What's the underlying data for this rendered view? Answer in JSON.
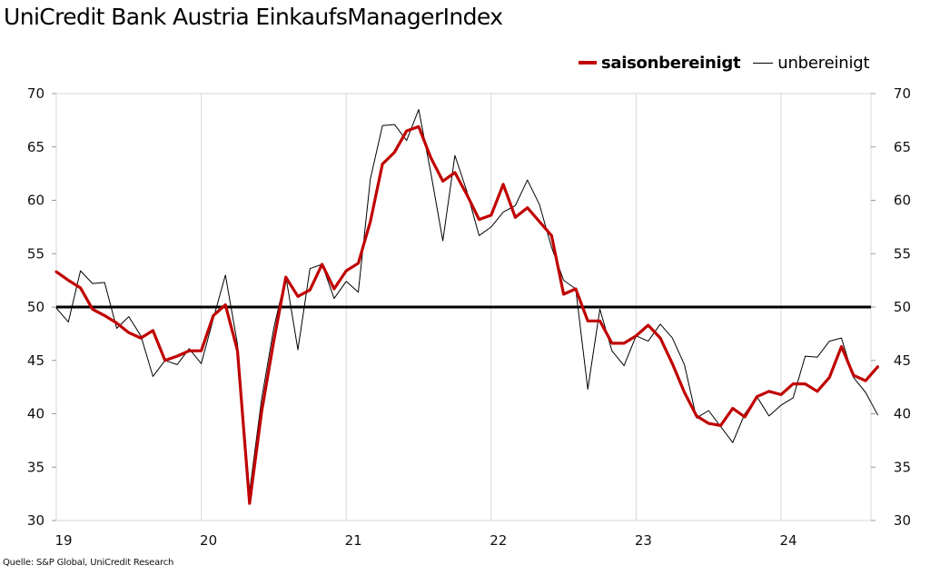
{
  "title": "UniCredit Bank Austria EinkaufsManagerIndex",
  "source": "Quelle: S&P Global, UniCredit Research",
  "legend": {
    "series1": "saisonbereinigt",
    "series2": "unbereinigt"
  },
  "colors": {
    "saisonbereinigt": "#c00000",
    "unbereinigt": "#000000",
    "threshold": "#000000",
    "grid": "#d9d9d9"
  },
  "chart_data": {
    "type": "line",
    "title": "UniCredit Bank Austria EinkaufsManagerIndex",
    "x_ticks": [
      "19",
      "20",
      "21",
      "22",
      "23",
      "24"
    ],
    "xlim": [
      2019,
      2024.667
    ],
    "ylim": [
      30,
      70
    ],
    "y_ticks": [
      30,
      35,
      40,
      45,
      50,
      55,
      60,
      65,
      70
    ],
    "y_axis_both_sides": true,
    "grid": "vertical at year starts",
    "legend_position": "top-right",
    "reference_line": 50,
    "x_start": "2019-01",
    "x_step": "monthly",
    "series": [
      {
        "name": "saisonbereinigt",
        "values": [
          53.3,
          52.5,
          51.8,
          49.8,
          49.2,
          48.5,
          47.6,
          47.1,
          47.8,
          45.0,
          45.4,
          45.9,
          45.9,
          49.2,
          50.2,
          45.9,
          31.6,
          40.2,
          46.8,
          52.8,
          51.0,
          51.6,
          54.0,
          51.7,
          53.4,
          54.1,
          58.0,
          63.4,
          64.5,
          66.5,
          66.9,
          64.0,
          61.8,
          62.6,
          60.5,
          58.2,
          58.6,
          61.5,
          58.4,
          59.3,
          58.0,
          56.7,
          51.2,
          51.7,
          48.7,
          48.7,
          46.6,
          46.6,
          47.3,
          48.3,
          47.1,
          44.7,
          42.0,
          39.8,
          39.1,
          38.9,
          40.5,
          39.7,
          41.6,
          42.1,
          41.8,
          42.8,
          42.8,
          42.1,
          43.4,
          46.3,
          43.6,
          43.1,
          44.4
        ]
      },
      {
        "name": "unbereinigt",
        "values": [
          49.9,
          48.6,
          53.4,
          52.2,
          52.3,
          48.0,
          49.1,
          47.3,
          43.5,
          45.0,
          44.6,
          46.1,
          44.7,
          48.9,
          53.0,
          46.5,
          32.7,
          41.4,
          48.0,
          52.9,
          46.0,
          53.6,
          54.0,
          50.8,
          52.4,
          51.4,
          62.0,
          67.0,
          67.1,
          65.6,
          68.5,
          62.6,
          56.2,
          64.2,
          60.8,
          56.7,
          57.5,
          58.9,
          59.5,
          61.9,
          59.6,
          55.6,
          52.5,
          51.7,
          42.3,
          49.8,
          45.9,
          44.5,
          47.3,
          46.8,
          48.4,
          47.1,
          44.6,
          39.6,
          40.3,
          38.8,
          37.3,
          40.0,
          41.6,
          39.8,
          40.8,
          41.5,
          45.4,
          45.3,
          46.8,
          47.1,
          43.4,
          42.0,
          39.9
        ]
      }
    ]
  }
}
